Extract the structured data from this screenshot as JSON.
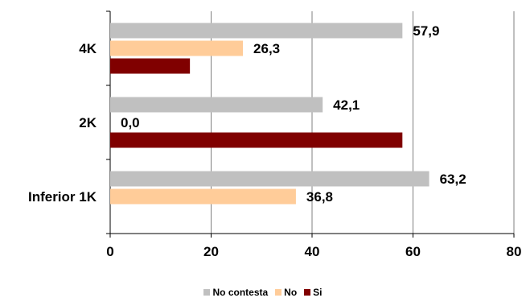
{
  "chart_data": {
    "type": "bar",
    "orientation": "horizontal",
    "categories": [
      "4K",
      "2K",
      "Inferior 1K"
    ],
    "series": [
      {
        "name": "No contesta",
        "color": "#c0c0c0",
        "values": [
          57.9,
          42.1,
          63.2
        ],
        "labels": [
          "57,9",
          "42,1",
          "63,2"
        ]
      },
      {
        "name": "No",
        "color": "#ffcc99",
        "values": [
          26.3,
          0.0,
          36.8
        ],
        "labels": [
          "26,3",
          "0,0",
          "36,8"
        ]
      },
      {
        "name": "Si",
        "color": "#800000",
        "values": [
          15.8,
          57.9,
          null
        ],
        "labels": [
          "",
          "",
          ""
        ]
      }
    ],
    "xlim": [
      0,
      80
    ],
    "xticks": [
      "0",
      "20",
      "40",
      "60",
      "80"
    ],
    "grid": "vertical",
    "legend_position": "bottom"
  }
}
